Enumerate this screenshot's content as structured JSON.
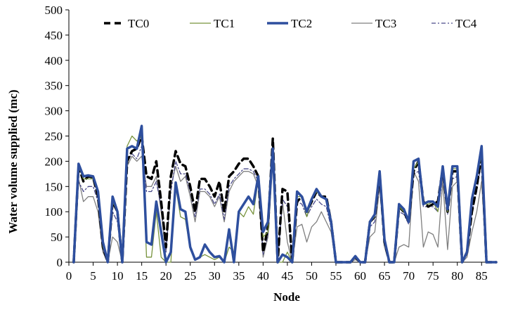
{
  "chart_data": {
    "type": "line",
    "title": "",
    "xlabel": "Node",
    "ylabel": "Water volume supplied (mc)",
    "xlim": [
      0,
      88
    ],
    "ylim": [
      0,
      500
    ],
    "xticks": [
      0,
      5,
      10,
      15,
      20,
      25,
      30,
      35,
      40,
      45,
      50,
      55,
      60,
      65,
      70,
      75,
      80,
      85
    ],
    "yticks": [
      0,
      50,
      100,
      150,
      200,
      250,
      300,
      350,
      400,
      450,
      500
    ],
    "grid": false,
    "legend_position": "top",
    "x": [
      1,
      2,
      3,
      4,
      5,
      6,
      7,
      8,
      9,
      10,
      11,
      12,
      13,
      14,
      15,
      16,
      17,
      18,
      19,
      20,
      21,
      22,
      23,
      24,
      25,
      26,
      27,
      28,
      29,
      30,
      31,
      32,
      33,
      34,
      35,
      36,
      37,
      38,
      39,
      40,
      41,
      42,
      43,
      44,
      45,
      46,
      47,
      48,
      49,
      50,
      51,
      52,
      53,
      54,
      55,
      56,
      57,
      58,
      59,
      60,
      61,
      62,
      63,
      64,
      65,
      66,
      67,
      68,
      69,
      70,
      71,
      72,
      73,
      74,
      75,
      76,
      77,
      78,
      79,
      80,
      81,
      82,
      83,
      84,
      85,
      86,
      87,
      88
    ],
    "series": [
      {
        "name": "TC0",
        "color": "#000000",
        "style": "dashed-thick",
        "values": [
          0,
          190,
          160,
          170,
          168,
          130,
          30,
          0,
          120,
          100,
          0,
          200,
          220,
          225,
          250,
          170,
          165,
          200,
          120,
          30,
          170,
          220,
          195,
          190,
          150,
          100,
          165,
          165,
          150,
          130,
          160,
          100,
          170,
          180,
          195,
          205,
          205,
          190,
          170,
          20,
          70,
          245,
          0,
          145,
          140,
          0,
          120,
          130,
          100,
          120,
          140,
          130,
          130,
          80,
          0,
          0,
          0,
          0,
          10,
          0,
          0,
          80,
          90,
          175,
          40,
          0,
          0,
          110,
          100,
          80,
          180,
          200,
          120,
          110,
          115,
          120,
          185,
          100,
          180,
          180,
          0,
          20,
          100,
          150,
          215,
          0,
          0,
          0
        ]
      },
      {
        "name": "TC1",
        "color": "#77933c",
        "style": "solid-thin",
        "values": [
          0,
          190,
          165,
          165,
          165,
          140,
          30,
          0,
          120,
          100,
          0,
          230,
          250,
          240,
          250,
          10,
          10,
          100,
          10,
          0,
          0,
          150,
          90,
          85,
          25,
          5,
          10,
          15,
          10,
          5,
          10,
          0,
          30,
          20,
          100,
          90,
          110,
          95,
          165,
          50,
          60,
          215,
          0,
          0,
          20,
          0,
          130,
          130,
          90,
          125,
          140,
          130,
          125,
          80,
          0,
          0,
          0,
          0,
          10,
          0,
          0,
          80,
          90,
          175,
          40,
          0,
          0,
          110,
          100,
          80,
          185,
          200,
          115,
          115,
          120,
          100,
          190,
          100,
          185,
          185,
          0,
          20,
          120,
          165,
          215,
          0,
          0,
          0
        ]
      },
      {
        "name": "TC2",
        "color": "#2e4f9e",
        "style": "solid-thick",
        "values": [
          0,
          195,
          170,
          172,
          170,
          140,
          40,
          0,
          130,
          100,
          0,
          225,
          230,
          225,
          270,
          40,
          35,
          120,
          60,
          0,
          20,
          158,
          105,
          100,
          30,
          5,
          10,
          35,
          20,
          10,
          12,
          0,
          65,
          0,
          100,
          115,
          130,
          115,
          170,
          60,
          80,
          225,
          0,
          15,
          10,
          0,
          140,
          130,
          100,
          125,
          145,
          130,
          125,
          80,
          0,
          0,
          0,
          0,
          12,
          0,
          0,
          80,
          95,
          180,
          45,
          0,
          0,
          115,
          105,
          80,
          200,
          205,
          115,
          120,
          120,
          110,
          190,
          105,
          190,
          190,
          0,
          20,
          125,
          170,
          230,
          0,
          0,
          0
        ]
      },
      {
        "name": "TC3",
        "color": "#7f7f7f",
        "style": "solid-thin",
        "values": [
          0,
          165,
          120,
          130,
          130,
          100,
          20,
          0,
          50,
          40,
          0,
          190,
          210,
          200,
          210,
          150,
          150,
          170,
          100,
          20,
          150,
          190,
          160,
          170,
          130,
          80,
          140,
          140,
          130,
          110,
          130,
          80,
          140,
          160,
          170,
          180,
          180,
          175,
          150,
          10,
          50,
          200,
          0,
          120,
          40,
          0,
          70,
          75,
          40,
          70,
          80,
          100,
          80,
          60,
          0,
          0,
          0,
          0,
          5,
          0,
          0,
          50,
          60,
          150,
          30,
          0,
          0,
          30,
          35,
          30,
          180,
          160,
          30,
          60,
          55,
          30,
          160,
          25,
          150,
          160,
          0,
          10,
          60,
          100,
          160,
          0,
          0,
          0
        ]
      },
      {
        "name": "TC4",
        "color": "#4a4a8a",
        "style": "dashdot",
        "values": [
          0,
          160,
          140,
          150,
          150,
          120,
          25,
          0,
          100,
          80,
          0,
          200,
          215,
          205,
          230,
          140,
          140,
          160,
          110,
          20,
          140,
          200,
          175,
          175,
          140,
          90,
          145,
          145,
          135,
          115,
          135,
          85,
          150,
          165,
          175,
          185,
          185,
          180,
          160,
          15,
          55,
          210,
          0,
          125,
          110,
          0,
          120,
          115,
          90,
          110,
          125,
          115,
          110,
          70,
          0,
          0,
          0,
          0,
          8,
          0,
          0,
          70,
          80,
          155,
          35,
          0,
          0,
          100,
          95,
          75,
          175,
          180,
          110,
          110,
          110,
          100,
          170,
          95,
          165,
          170,
          0,
          15,
          100,
          140,
          200,
          0,
          0,
          0
        ]
      }
    ]
  }
}
